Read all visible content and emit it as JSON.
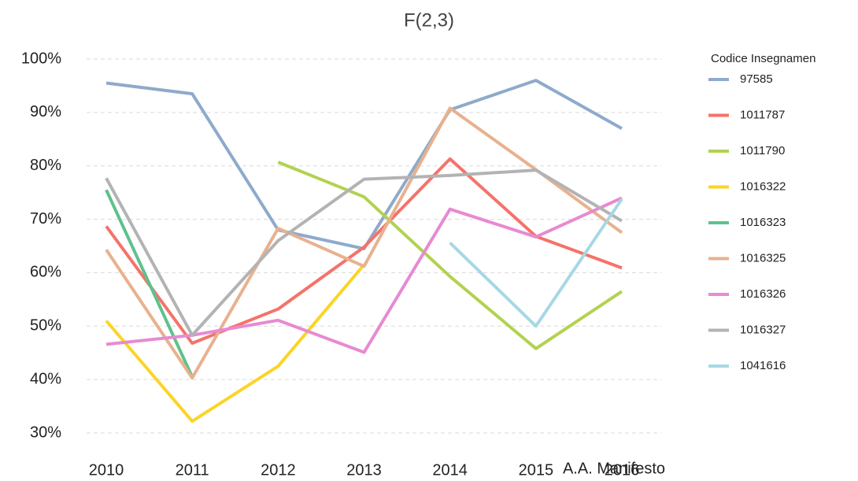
{
  "chart_data": {
    "type": "line",
    "title": "F(2,3)",
    "x_label": "A.A. Manifesto",
    "legend_title": "Codice Insegnamen",
    "legend": "right",
    "grid": true,
    "categories": [
      "2010",
      "2011",
      "2012",
      "2013",
      "2014",
      "2015",
      "2016"
    ],
    "ylim": [
      30,
      100
    ],
    "yticks": [
      {
        "value": 30,
        "label": "30%"
      },
      {
        "value": 40,
        "label": "40%"
      },
      {
        "value": 50,
        "label": "50%"
      },
      {
        "value": 60,
        "label": "60%"
      },
      {
        "value": 70,
        "label": "70%"
      },
      {
        "value": 80,
        "label": "80%"
      },
      {
        "value": 90,
        "label": "90%"
      },
      {
        "value": 100,
        "label": "100%"
      }
    ],
    "series": [
      {
        "name": "97585",
        "color": "#8eaacb",
        "values": [
          95.5,
          93.5,
          68,
          64.5,
          90.5,
          96,
          87
        ]
      },
      {
        "name": "1011787",
        "color": "#f4736a",
        "values": [
          68.7,
          46.8,
          53.2,
          64.8,
          81.3,
          66.8,
          60.9
        ]
      },
      {
        "name": "1011790",
        "color": "#b2d24f",
        "values": [
          null,
          null,
          80.7,
          74.2,
          59.3,
          45.8,
          56.5
        ]
      },
      {
        "name": "1016322",
        "color": "#fcd427",
        "values": [
          51,
          32.2,
          42.5,
          61.5,
          null,
          null,
          null
        ]
      },
      {
        "name": "1016323",
        "color": "#5fc18d",
        "values": [
          75.5,
          40.5,
          null,
          null,
          null,
          null,
          null
        ]
      },
      {
        "name": "1016325",
        "color": "#e8b18e",
        "values": [
          64.3,
          40.3,
          68.3,
          61.2,
          90.8,
          79.3,
          67.5
        ]
      },
      {
        "name": "1016326",
        "color": "#e78ad2",
        "values": [
          46.6,
          48.3,
          51.1,
          45.1,
          71.9,
          66.7,
          74
        ]
      },
      {
        "name": "1016327",
        "color": "#b3b3b3",
        "values": [
          77.7,
          48.3,
          66,
          77.5,
          78.2,
          79.2,
          69.7
        ]
      },
      {
        "name": "1041616",
        "color": "#a6d8e4",
        "values": [
          null,
          null,
          null,
          null,
          65.6,
          50,
          73.8
        ]
      }
    ]
  }
}
